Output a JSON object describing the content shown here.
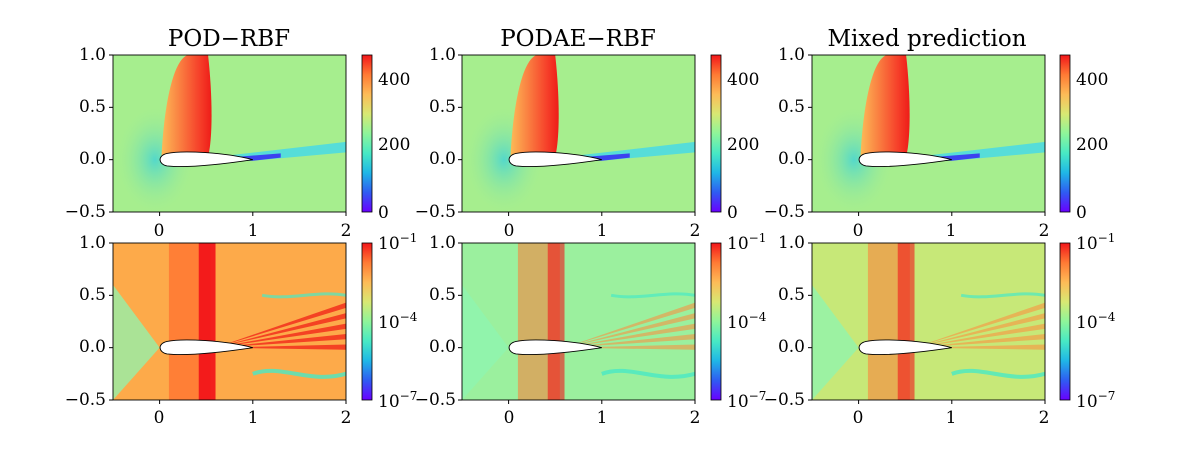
{
  "chart_data": [
    {
      "type": "heatmap",
      "title": "POD-RBF",
      "x_ticks": [
        "0",
        "1",
        "2"
      ],
      "xlim": [
        -0.5,
        2
      ],
      "y_ticks": [
        "1.0",
        "0.5",
        "0.0",
        "−0.5"
      ],
      "ylim": [
        -0.5,
        1.0
      ],
      "colorbar": {
        "scale": "linear",
        "range": [
          0,
          460
        ],
        "ticks": [
          "400",
          "200",
          "0"
        ]
      },
      "field": {
        "shock_x": 0.52,
        "wake": "strong"
      }
    },
    {
      "type": "heatmap",
      "title": "PODAE-RBF",
      "x_ticks": [
        "0",
        "1",
        "2"
      ],
      "xlim": [
        -0.5,
        2
      ],
      "y_ticks": [
        "1.0",
        "0.5",
        "0.0",
        "−0.5"
      ],
      "ylim": [
        -0.5,
        1.0
      ],
      "colorbar": {
        "scale": "linear",
        "range": [
          0,
          460
        ],
        "ticks": [
          "400",
          "200",
          "0"
        ]
      },
      "field": {
        "shock_x": 0.5,
        "wake": "strong"
      }
    },
    {
      "type": "heatmap",
      "title": "Mixed prediction",
      "x_ticks": [
        "0",
        "1",
        "2"
      ],
      "xlim": [
        -0.5,
        2
      ],
      "y_ticks": [
        "1.0",
        "0.5",
        "0.0",
        "−0.5"
      ],
      "ylim": [
        -0.5,
        1.0
      ],
      "colorbar": {
        "scale": "linear",
        "range": [
          0,
          460
        ],
        "ticks": [
          "400",
          "200",
          "0"
        ]
      },
      "field": {
        "shock_x": 0.51,
        "wake": "strong"
      }
    },
    {
      "type": "heatmap",
      "title": "",
      "x_ticks": [
        "0",
        "1",
        "2"
      ],
      "xlim": [
        -0.5,
        2
      ],
      "y_ticks": [
        "1.0",
        "0.5",
        "0.0",
        "−0.5"
      ],
      "ylim": [
        -0.5,
        1.0
      ],
      "colorbar": {
        "scale": "log",
        "range": [
          1e-07,
          0.1
        ],
        "ticks": [
          "10^-1",
          "10^-4",
          "10^-7"
        ]
      },
      "field": {
        "error_level": "high"
      }
    },
    {
      "type": "heatmap",
      "title": "",
      "x_ticks": [
        "0",
        "1",
        "2"
      ],
      "xlim": [
        -0.5,
        2
      ],
      "y_ticks": [
        "1.0",
        "0.5",
        "0.0",
        "−0.5"
      ],
      "ylim": [
        -0.5,
        1.0
      ],
      "colorbar": {
        "scale": "log",
        "range": [
          1e-07,
          0.1
        ],
        "ticks": [
          "10^-1",
          "10^-4",
          "10^-7"
        ]
      },
      "field": {
        "error_level": "low"
      }
    },
    {
      "type": "heatmap",
      "title": "",
      "x_ticks": [
        "0",
        "1",
        "2"
      ],
      "xlim": [
        -0.5,
        2
      ],
      "y_ticks": [
        "1.0",
        "0.5",
        "0.0",
        "−0.5"
      ],
      "ylim": [
        -0.5,
        1.0
      ],
      "colorbar": {
        "scale": "log",
        "range": [
          1e-07,
          0.1
        ],
        "ticks": [
          "10^-1",
          "10^-4",
          "10^-7"
        ]
      },
      "field": {
        "error_level": "medium"
      }
    }
  ],
  "colors": {
    "colormap": [
      "#6a00ff",
      "#2f5cf2",
      "#1fb7e6",
      "#48e9c4",
      "#8ef59a",
      "#d8e873",
      "#fdbb57",
      "#ff7a34",
      "#f2161a"
    ],
    "airfoil": "#ffffff"
  }
}
